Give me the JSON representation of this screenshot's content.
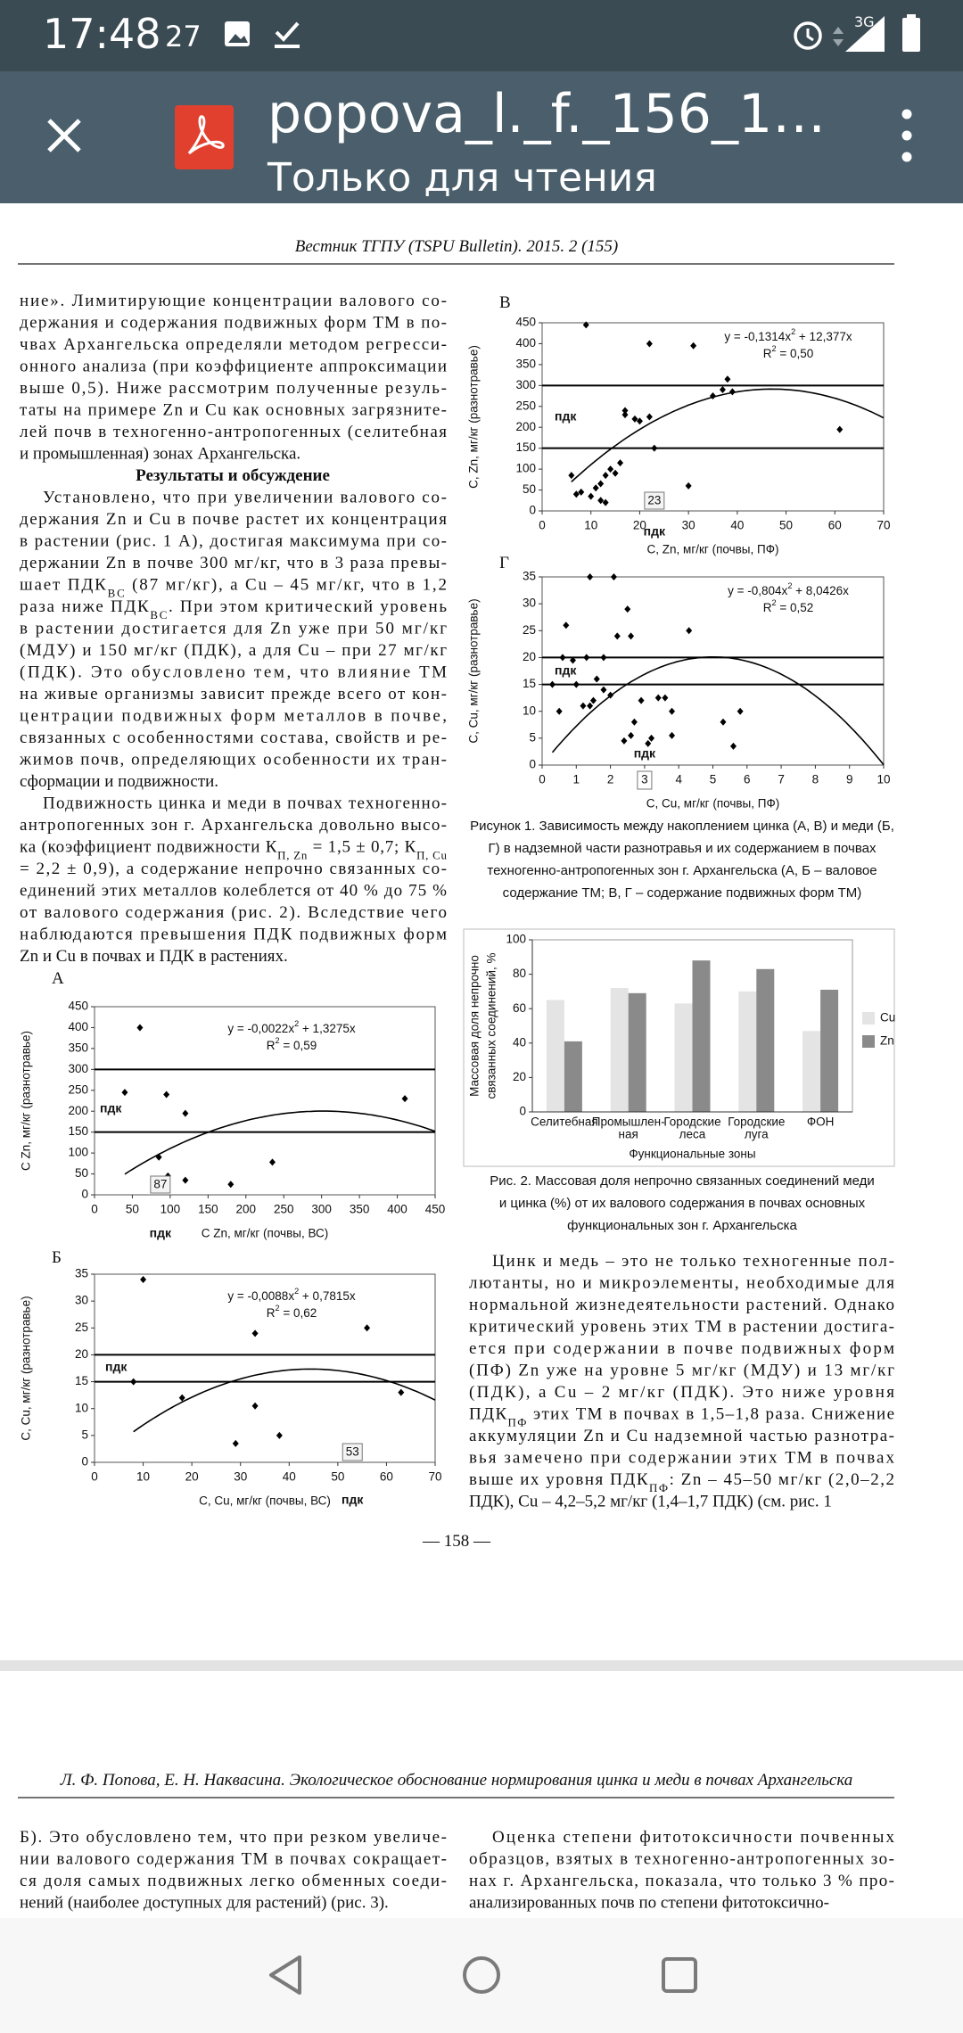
{
  "status_bar": {
    "time": "17:48",
    "notification_count": "27",
    "network": "3G"
  },
  "app_bar": {
    "title": "popova_l._f._156_1…",
    "subtitle": "Только для чтения"
  },
  "page_1": {
    "header": "Вестник ТГПУ (TSPU Bulletin). 2015. 2 (155)",
    "left_column": {
      "paragraph_1": [
        "ние». Лимитирующие концентрации валового со-",
        "держания и содержания подвижных форм ТМ в по-",
        "чвах Архангельска определяли методом регресси-",
        "онного анализа (при коэффициенте аппроксимации",
        "выше 0,5). Ниже рассмотрим полученные резуль-",
        "таты на примере Zn и Cu как основных загрязните-",
        "лей почв в техногенно-антропогенных (селитебная",
        "и промышленная) зонах Архангельска."
      ],
      "heading": "Результаты и обсуждение",
      "paragraph_2": [
        "Установлено, что при увеличении валового со-",
        "держания Zn и Cu в почве растет их концентрация",
        "в растении (рис. 1 А), достигая максимума при со-",
        "держании Zn в почве 300 мг/кг, что в 3 раза превы-",
        [
          "шает ПДК",
          "ВС",
          " (87 мг/кг), а Cu – 45 мг/кг, что в 1,2"
        ],
        [
          "раза ниже ПДК",
          "ВС",
          ". При этом критический уровень"
        ],
        "в растении достигается для Zn уже при 50 мг/кг",
        "(МДУ) и 150 мг/кг (ПДК), а для Cu – при 27 мг/кг",
        "(ПДК). Это обусловлено тем, что влияние ТМ",
        "на живые организмы зависит прежде всего от кон-",
        "центрации подвижных форм металлов в почве,",
        "связанных с особенностями состава, свойств и ре-",
        "жимов почв, определяющих особенности их тран-",
        "сформации и подвижности."
      ],
      "paragraph_3": [
        "Подвижность цинка и меди в почвах техногенно-",
        "антропогенных зон г. Архангельска довольно высо-",
        [
          "ка (коэффициент подвижности К",
          "П, Zn",
          " = 1,5 ± 0,7; К",
          "П, Cu"
        ],
        "= 2,2 ± 0,9), а содержание непрочно связанных со-",
        "единений этих металлов колеблется от 40 % до 75 %",
        "от валового содержания (рис. 2). Вследствие чего",
        "наблюдаются превышения ПДК подвижных форм",
        "Zn и Cu в почвах и ПДК в растениях."
      ]
    },
    "right_column": {
      "paragraph_1": [
        "Цинк и медь – это не только техногенные пол-",
        "лютанты, но и микроэлементы, необходимые для",
        "нормальной жизнедеятельности растений. Однако",
        "критический уровень этих ТМ в растении достига-",
        "ется при содержании в почве подвижных форм",
        "(ПФ) Zn уже на уровне 5 мг/кг (МДУ) и 13 мг/кг",
        "(ПДК), а Cu – 2 мг/кг (ПДК). Это ниже уровня",
        [
          "ПДК",
          "ПФ",
          " этих ТМ в почвах в 1,5–1,8 раза. Снижение"
        ],
        "аккумуляции Zn и Cu надземной частью разнотра-",
        "вья замечено при содержании этих ТМ в почвах",
        [
          "выше их уровня ПДК",
          "ПФ",
          ": Zn – 45–50 мг/кг (2,0–2,2"
        ],
        "ПДК), Cu – 4,2–5,2 мг/кг (1,4–1,7 ПДК) (см. рис. 1"
      ]
    },
    "figure_1_caption": [
      "Рисунок 1. Зависимость между накоплением цинка (А, В) и меди (Б,",
      "Г) в надземной части разнотравья и их содержанием в почвах",
      "техногенно-антропогенных зон г. Архангельска (А, Б – валовое",
      "содержание ТМ; В, Г – содержание подвижных форм ТМ)"
    ],
    "figure_2_caption": [
      "Рис. 2. Массовая доля непрочно связанных соединений меди",
      "и цинка (%) от их валового содержания в почвах основных",
      "функциональных зон г. Архангельска"
    ],
    "page_number": "— 158 —"
  },
  "page_2": {
    "header": "Л. Ф. Попова, Е. Н. Наквасина. Экологическое обоснование нормирования цинка и меди в почвах Архангельска",
    "left_column": {
      "paragraph_1": [
        "Б). Это обусловлено тем, что при резком увеличе-",
        "нии валового содержания ТМ в почвах сокращает-",
        "ся доля самых подвижных легко обменных соеди-",
        "нений (наиболее доступных для растений) (рис. 3)."
      ]
    },
    "right_column": {
      "paragraph_1": [
        "Оценка степени фитотоксичности почвенных",
        "образцов, взятых в техногенно-антропогенных зо-",
        "нах г. Архангельска, показала, что только 3 % про-",
        "анализированных почв по степени фитотоксично-"
      ]
    }
  },
  "chart_data": [
    {
      "type": "scatter",
      "panel": "А",
      "x": [
        40,
        60,
        85,
        95,
        97,
        120,
        120,
        180,
        235,
        410
      ],
      "values": [
        245,
        400,
        90,
        240,
        45,
        195,
        35,
        25,
        78,
        230
      ],
      "xlim": [
        0,
        450
      ],
      "xticks": [
        0,
        50,
        100,
        150,
        200,
        250,
        300,
        350,
        400,
        450
      ],
      "ylim": [
        0,
        450
      ],
      "yticks": [
        0,
        50,
        100,
        150,
        200,
        250,
        300,
        350,
        400,
        450
      ],
      "xlabel": "С Zn, мг/кг (почвы, ВС)",
      "ylabel": "С Zn, мг/кг (разнотравье)",
      "equation": [
        "y = -0,0022x",
        "2",
        " + 1,3275x"
      ],
      "r2": [
        "R",
        "2",
        " = 0,59"
      ],
      "hlines": [
        150,
        300
      ],
      "pdk_y_label": "пдк",
      "pdk_x_label": "пдк",
      "pdk_x": 87
    },
    {
      "type": "scatter",
      "panel": "Б",
      "x": [
        8,
        10,
        18,
        29,
        33,
        33,
        38,
        56,
        63
      ],
      "values": [
        15,
        34,
        12,
        3.5,
        24,
        10.5,
        5,
        25,
        13
      ],
      "xlim": [
        0,
        70
      ],
      "xticks": [
        0,
        10,
        20,
        30,
        40,
        50,
        60,
        70
      ],
      "ylim": [
        0,
        35
      ],
      "yticks": [
        0,
        5,
        10,
        15,
        20,
        25,
        30,
        35
      ],
      "xlabel": "С, Cu, мг/кг (почвы, ВС)",
      "ylabel": "С, Cu, мг/кг (разнотравье)",
      "equation": [
        "y = -0,0088x",
        "2",
        " + 0,7815x"
      ],
      "r2": [
        "R",
        "2",
        " = 0,62"
      ],
      "hlines": [
        15,
        20
      ],
      "pdk_y_label": "пдк",
      "pdk_x_label": "пдк",
      "pdk_x": 53
    },
    {
      "type": "scatter",
      "panel": "В",
      "x": [
        6,
        7,
        8,
        9,
        10,
        11,
        12,
        12,
        13,
        13,
        14,
        15,
        16,
        17,
        17,
        19,
        20,
        22,
        22,
        23,
        30,
        31,
        35,
        37,
        38,
        39,
        61
      ],
      "values": [
        85,
        40,
        45,
        445,
        35,
        55,
        25,
        65,
        20,
        85,
        100,
        90,
        115,
        240,
        230,
        220,
        215,
        225,
        400,
        150,
        60,
        395,
        275,
        290,
        315,
        285,
        195
      ],
      "xlim": [
        0,
        70
      ],
      "xticks": [
        0,
        10,
        20,
        30,
        40,
        50,
        60,
        70
      ],
      "ylim": [
        0,
        450
      ],
      "yticks": [
        0,
        50,
        100,
        150,
        200,
        250,
        300,
        350,
        400,
        450
      ],
      "xlabel": "С, Zn, мг/кг (почвы, ПФ)",
      "ylabel": "С, Zn, мг/кг (разнотравье)",
      "equation": [
        "y = -0,1314x",
        "2",
        " + 12,377x"
      ],
      "r2": [
        "R",
        "2",
        " = 0,50"
      ],
      "hlines": [
        150,
        300
      ],
      "pdk_y_label": "пдк",
      "pdk_x_label": "пдк",
      "pdk_x": 23
    },
    {
      "type": "scatter",
      "panel": "Г",
      "x": [
        0.3,
        0.5,
        0.6,
        0.7,
        0.9,
        1,
        1.2,
        1.3,
        1.4,
        1.4,
        1.5,
        1.6,
        1.8,
        1.8,
        2,
        2.1,
        2.2,
        2.4,
        2.5,
        2.6,
        2.6,
        2.7,
        2.9,
        3.1,
        3.2,
        3.4,
        3.6,
        3.8,
        3.8,
        4.3,
        5.3,
        5.6,
        5.8
      ],
      "values": [
        15,
        10,
        20,
        26,
        19.5,
        15,
        11,
        20,
        35,
        11,
        12,
        16,
        20,
        14,
        13,
        35,
        24,
        4.5,
        29,
        24,
        5.5,
        8,
        12,
        4,
        5,
        12.5,
        12.5,
        10,
        5.5,
        25,
        8,
        3.5,
        10
      ],
      "xlim": [
        0,
        10
      ],
      "xticks": [
        0,
        1,
        2,
        3,
        4,
        5,
        6,
        7,
        8,
        9,
        10
      ],
      "ylim": [
        0,
        35
      ],
      "yticks": [
        0,
        5,
        10,
        15,
        20,
        25,
        30,
        35
      ],
      "xlabel": "С, Cu, мг/кг (почвы, ПФ)",
      "ylabel": "С, Cu, мг/кг (разнотравье)",
      "equation": [
        "y = -0,804x",
        "2",
        " + 8,0426x"
      ],
      "r2": [
        "R",
        "2",
        " = 0,52"
      ],
      "hlines": [
        15,
        20
      ],
      "pdk_y_label": "пдк",
      "pdk_x_label": "пдк",
      "pdk_x": 3
    },
    {
      "type": "bar",
      "categories": [
        [
          "Селитебная"
        ],
        [
          "Промышлен-",
          "ная"
        ],
        [
          "Городские",
          "леса"
        ],
        [
          "Городские",
          "луга"
        ],
        [
          "ФОН"
        ]
      ],
      "series": [
        {
          "name": "Cu",
          "color": "#e4e4e4",
          "values": [
            65,
            72,
            63,
            70,
            47
          ]
        },
        {
          "name": "Zn",
          "color": "#8a8a8a",
          "values": [
            41,
            69,
            88,
            83,
            71
          ]
        }
      ],
      "ylim": [
        0,
        100
      ],
      "yticks": [
        0,
        20,
        40,
        60,
        80,
        100
      ],
      "ylabel": [
        "Массовая доля непрочно",
        "связанных соединений, %"
      ],
      "xlabel": "Функциональные зоны"
    }
  ]
}
